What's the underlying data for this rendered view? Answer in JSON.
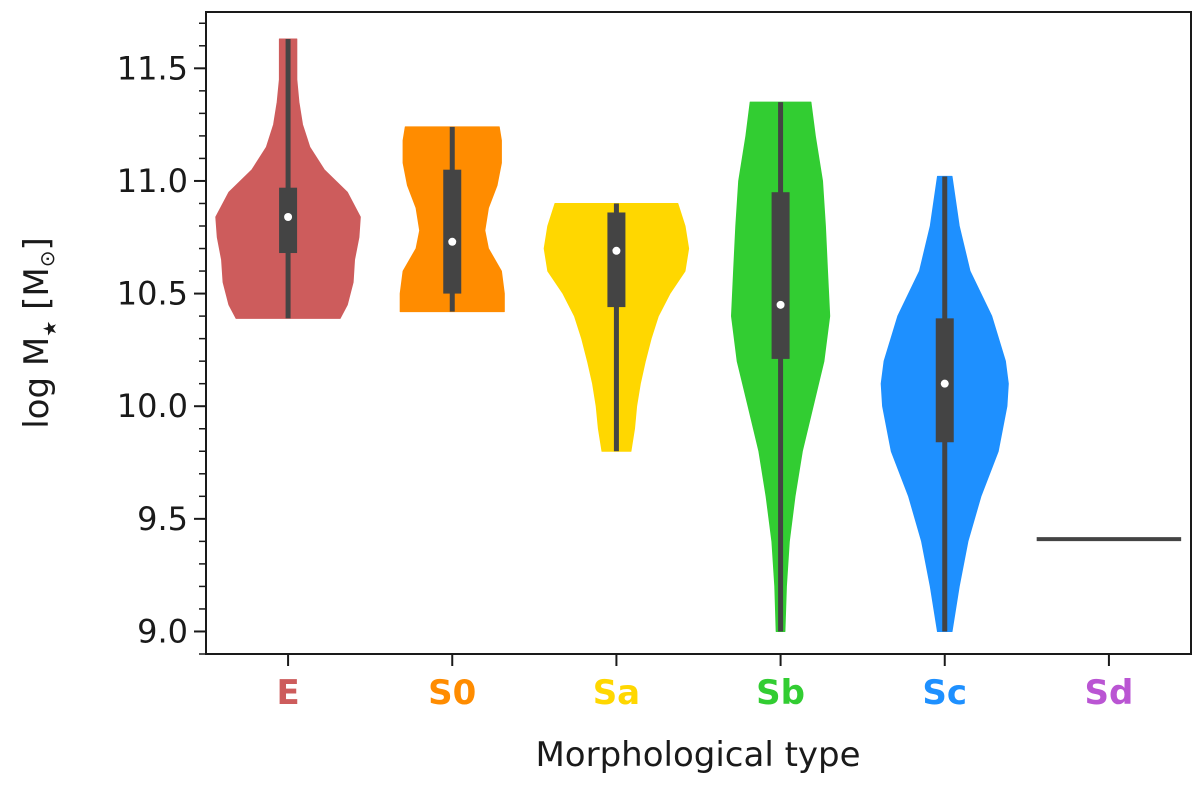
{
  "chart_data": {
    "type": "violin",
    "xlabel": "Morphological type",
    "ylabel": "log M",
    "ylabel_sub": "★",
    "ylabel_unit_open": " [M",
    "ylabel_unit_sub": "⊙",
    "ylabel_unit_close": "]",
    "ylim": [
      8.9,
      11.75
    ],
    "yticks": [
      9.0,
      9.5,
      10.0,
      10.5,
      11.0,
      11.5
    ],
    "ytick_labels": [
      "9.0",
      "9.5",
      "10.0",
      "10.5",
      "11.0",
      "11.5"
    ],
    "grid": false,
    "categories": [
      "E",
      "S0",
      "Sa",
      "Sb",
      "Sc",
      "Sd"
    ],
    "colors": [
      "#cd5c5c",
      "#ff8c00",
      "#ffd700",
      "#32cd32",
      "#1e90ff",
      "#ba55d3"
    ],
    "box_color": "#444444",
    "median_color": "#ffffff",
    "series": [
      {
        "category": "E",
        "min": 10.39,
        "max": 11.63,
        "q1": 10.68,
        "median": 10.84,
        "q3": 10.97,
        "density": [
          [
            10.39,
            0.72
          ],
          [
            10.45,
            0.82
          ],
          [
            10.55,
            0.9
          ],
          [
            10.65,
            0.92
          ],
          [
            10.75,
            0.98
          ],
          [
            10.84,
            1.0
          ],
          [
            10.95,
            0.82
          ],
          [
            11.05,
            0.5
          ],
          [
            11.15,
            0.3
          ],
          [
            11.25,
            0.2
          ],
          [
            11.35,
            0.15
          ],
          [
            11.45,
            0.12
          ],
          [
            11.55,
            0.12
          ],
          [
            11.63,
            0.12
          ]
        ]
      },
      {
        "category": "S0",
        "min": 10.42,
        "max": 11.24,
        "q1": 10.5,
        "median": 10.73,
        "q3": 11.05,
        "density": [
          [
            10.42,
            0.72
          ],
          [
            10.5,
            0.72
          ],
          [
            10.6,
            0.68
          ],
          [
            10.7,
            0.5
          ],
          [
            10.78,
            0.45
          ],
          [
            10.88,
            0.5
          ],
          [
            10.98,
            0.62
          ],
          [
            11.08,
            0.68
          ],
          [
            11.18,
            0.68
          ],
          [
            11.24,
            0.65
          ]
        ]
      },
      {
        "category": "Sa",
        "min": 9.8,
        "max": 10.9,
        "q1": 10.44,
        "median": 10.69,
        "q3": 10.86,
        "density": [
          [
            9.8,
            0.2
          ],
          [
            9.9,
            0.25
          ],
          [
            10.0,
            0.28
          ],
          [
            10.1,
            0.33
          ],
          [
            10.2,
            0.4
          ],
          [
            10.3,
            0.48
          ],
          [
            10.4,
            0.58
          ],
          [
            10.5,
            0.74
          ],
          [
            10.6,
            0.95
          ],
          [
            10.7,
            1.0
          ],
          [
            10.8,
            0.95
          ],
          [
            10.9,
            0.85
          ]
        ]
      },
      {
        "category": "Sb",
        "min": 9.0,
        "max": 11.35,
        "q1": 10.21,
        "median": 10.45,
        "q3": 10.95,
        "density": [
          [
            9.0,
            0.06
          ],
          [
            9.2,
            0.08
          ],
          [
            9.4,
            0.12
          ],
          [
            9.6,
            0.2
          ],
          [
            9.8,
            0.3
          ],
          [
            10.0,
            0.45
          ],
          [
            10.2,
            0.6
          ],
          [
            10.4,
            0.68
          ],
          [
            10.6,
            0.65
          ],
          [
            10.8,
            0.62
          ],
          [
            11.0,
            0.58
          ],
          [
            11.2,
            0.48
          ],
          [
            11.35,
            0.42
          ]
        ]
      },
      {
        "category": "Sc",
        "min": 9.0,
        "max": 11.02,
        "q1": 9.84,
        "median": 10.1,
        "q3": 10.39,
        "density": [
          [
            9.0,
            0.1
          ],
          [
            9.2,
            0.2
          ],
          [
            9.4,
            0.32
          ],
          [
            9.6,
            0.5
          ],
          [
            9.8,
            0.74
          ],
          [
            10.0,
            0.86
          ],
          [
            10.1,
            0.88
          ],
          [
            10.2,
            0.84
          ],
          [
            10.4,
            0.65
          ],
          [
            10.6,
            0.35
          ],
          [
            10.8,
            0.2
          ],
          [
            11.02,
            0.1
          ]
        ]
      },
      {
        "category": "Sd",
        "single_value": 9.41
      }
    ]
  }
}
